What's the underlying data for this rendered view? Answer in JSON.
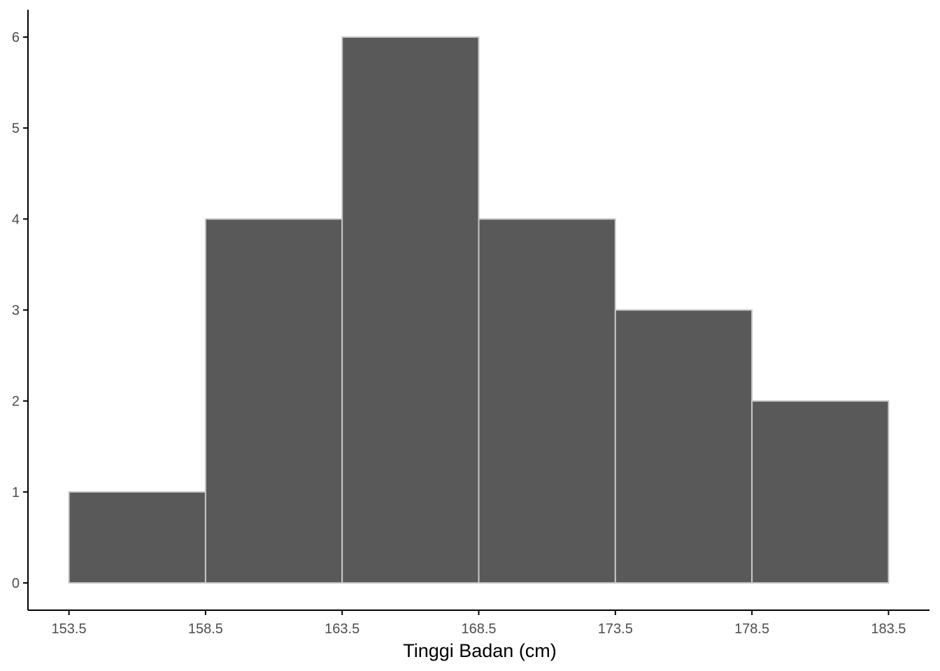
{
  "chart_data": {
    "type": "histogram",
    "title": "",
    "xlabel": "Tinggi Badan (cm)",
    "ylabel": "",
    "bin_edges": [
      153.5,
      158.5,
      163.5,
      168.5,
      173.5,
      178.5,
      183.5
    ],
    "counts": [
      1,
      4,
      6,
      4,
      3,
      2
    ],
    "x_ticks": [
      "153.5",
      "158.5",
      "163.5",
      "168.5",
      "173.5",
      "178.5",
      "183.5"
    ],
    "y_ticks": [
      "0",
      "1",
      "2",
      "3",
      "4",
      "5",
      "6"
    ],
    "xlim": [
      152.0,
      185.0
    ],
    "ylim": [
      -0.3,
      6.3
    ],
    "grid": false,
    "legend": "none",
    "colors": {
      "bar_fill": "#595959",
      "bar_stroke": "#c8c8c8",
      "axis": "#000000",
      "tick_text": "#4d4d4d",
      "title_text": "#000000"
    }
  }
}
